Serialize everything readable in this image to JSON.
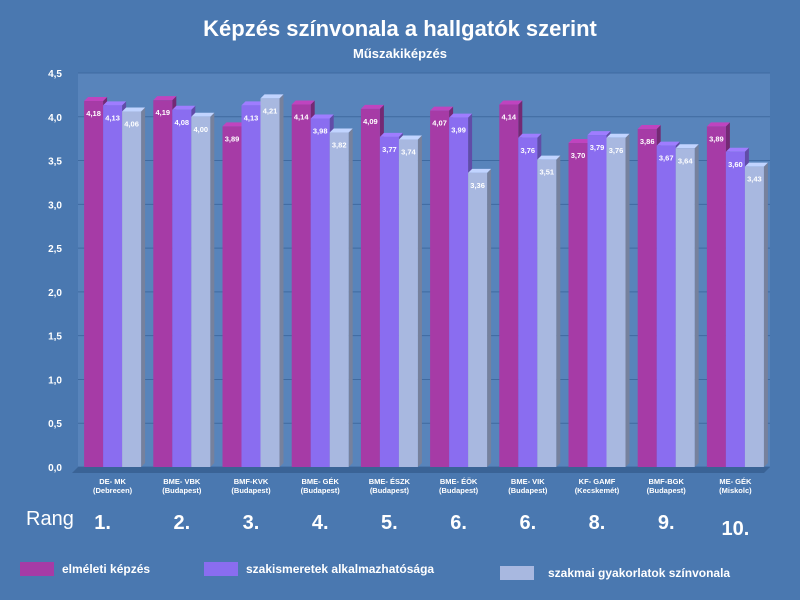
{
  "colors": {
    "background": "#4a78b0",
    "series": [
      "#a63ba6",
      "#8a6df0",
      "#a8b8e0"
    ]
  },
  "chart_data": {
    "type": "bar",
    "title": "Képzés színvonala a hallgatók szerint",
    "subtitle": "Műszakiképzés",
    "xlabel": "",
    "ylabel": "",
    "ylim": [
      0,
      4.5
    ],
    "yticks": [
      "0,0",
      "0,5",
      "1,0",
      "1,5",
      "2,0",
      "2,5",
      "3,0",
      "3,5",
      "4,0",
      "4,5"
    ],
    "grid": true,
    "legend": "bottom",
    "categories": [
      {
        "name": "DE- MK",
        "city": "(Debrecen)"
      },
      {
        "name": "BME- VBK",
        "city": "(Budapest)"
      },
      {
        "name": "BMF-KVK",
        "city": "(Budapest)"
      },
      {
        "name": "BME- GÉK",
        "city": "(Budapest)"
      },
      {
        "name": "BME- ÉSZK",
        "city": "(Budapest)"
      },
      {
        "name": "BME- ÉÖK",
        "city": "(Budapest)"
      },
      {
        "name": "BME- VIK",
        "city": "(Budapest)"
      },
      {
        "name": "KF- GAMF",
        "city": "(Kecskemét)"
      },
      {
        "name": "BMF-BGK",
        "city": "(Budapest)"
      },
      {
        "name": "ME- GÉK",
        "city": "(Miskolc)"
      }
    ],
    "series": [
      {
        "name": "elméleti képzés",
        "values": [
          4.18,
          4.19,
          3.89,
          4.14,
          4.09,
          4.07,
          4.14,
          3.7,
          3.86,
          3.89
        ],
        "labels": [
          "4,18",
          "4,19",
          "3,89",
          "4,14",
          "4,09",
          "4,07",
          "4,14",
          "3,70",
          "3,86",
          "3,89"
        ]
      },
      {
        "name": "szakismeretek alkalmazhatósága",
        "values": [
          4.13,
          4.08,
          4.13,
          3.98,
          3.77,
          3.99,
          3.76,
          3.79,
          3.67,
          3.6
        ],
        "labels": [
          "4,13",
          "4,08",
          "4,13",
          "3,98",
          "3,77",
          "3,99",
          "3,76",
          "3,79",
          "3,67",
          "3,60"
        ]
      },
      {
        "name": "szakmai gyakorlatok színvonala",
        "values": [
          4.06,
          4.0,
          4.21,
          3.82,
          3.74,
          3.36,
          3.51,
          3.76,
          3.64,
          3.43
        ],
        "labels": [
          "4,06",
          "4,00",
          "4,21",
          "3,82",
          "3,74",
          "3,36",
          "3,51",
          "3,76",
          "3,64",
          "3,43"
        ]
      }
    ]
  },
  "ranking": {
    "label": "Rang",
    "ranks": [
      "1.",
      "2.",
      "3.",
      "4.",
      "5.",
      "6.",
      "6.",
      "8.",
      "9.",
      "10."
    ]
  }
}
